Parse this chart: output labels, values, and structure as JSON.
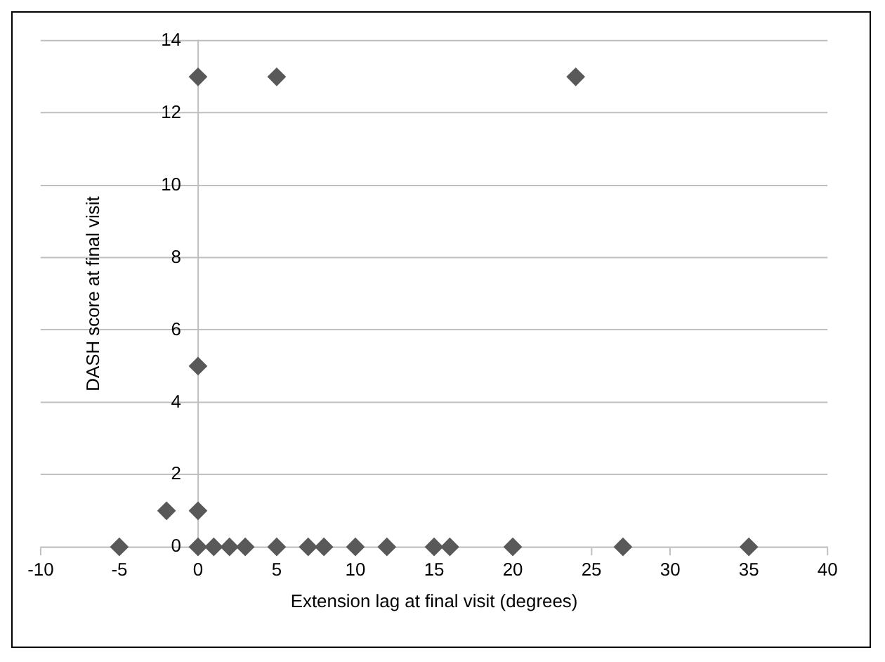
{
  "chart_data": {
    "type": "scatter",
    "xlabel": "Extension lag at final visit (degrees)",
    "ylabel": "DASH score at final visit",
    "series": [
      {
        "color": "#595959",
        "x": [
          -5,
          -2,
          0,
          0,
          1,
          2,
          3,
          5,
          7,
          8,
          10,
          12,
          15,
          16,
          20,
          27,
          35,
          0,
          5,
          24,
          0
        ],
        "values": [
          0,
          1,
          1,
          0,
          0,
          0,
          0,
          0,
          0,
          0,
          0,
          0,
          0,
          0,
          0,
          0,
          0,
          13,
          13,
          13,
          5
        ]
      }
    ],
    "xlim": [
      -10,
      40
    ],
    "xticks": [
      -10,
      -5,
      0,
      5,
      10,
      15,
      20,
      25,
      30,
      35,
      40
    ],
    "ylim": [
      0,
      14
    ],
    "yticks": [
      0,
      2,
      4,
      6,
      8,
      10,
      12,
      14
    ],
    "grid": "y",
    "legend": false,
    "marker": "diamond"
  }
}
